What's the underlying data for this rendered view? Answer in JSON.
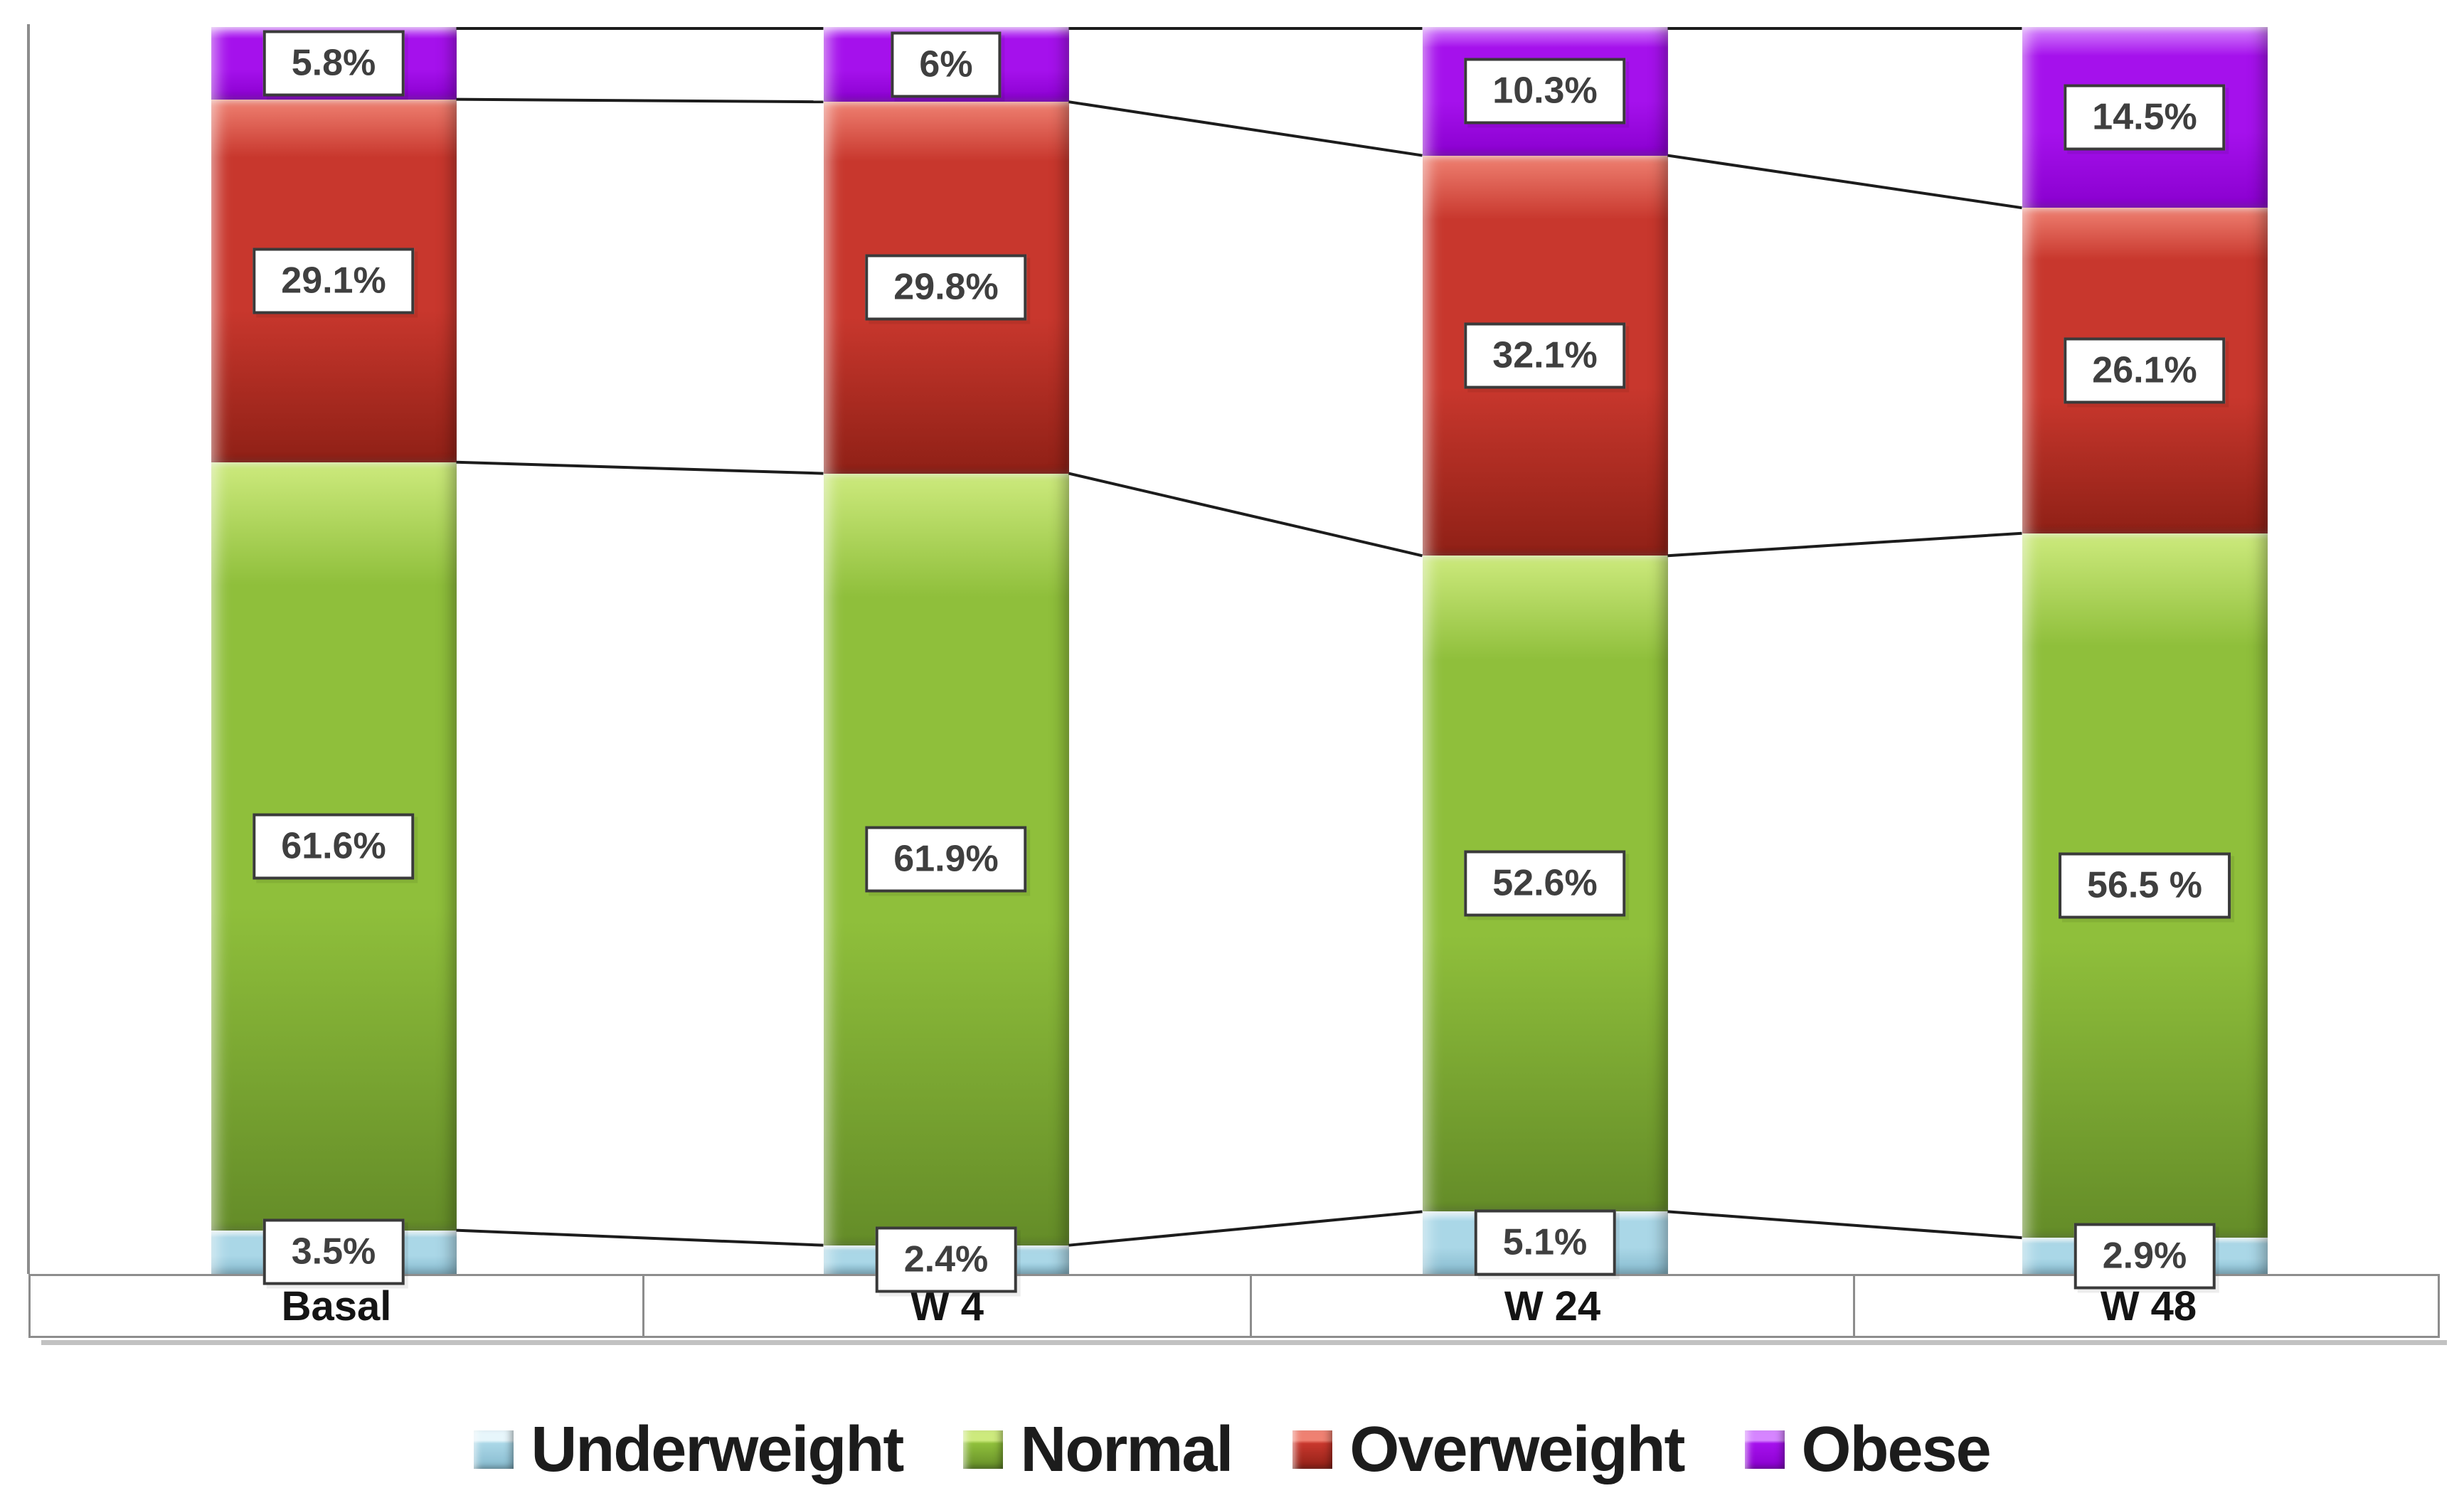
{
  "chart_data": {
    "type": "bar",
    "subtype": "stacked-100-percent-column",
    "title": "",
    "categories": [
      "Basal",
      "W 4",
      "W 24",
      "W 48"
    ],
    "series": [
      {
        "name": "Underweight",
        "color": "#aad7e7",
        "color_light": "#e7f6fb",
        "color_dark": "#86bace",
        "values": [
          3.5,
          2.4,
          5.1,
          2.9
        ],
        "labels": [
          "3.5%",
          "2.4%",
          "5.1%",
          "2.9%"
        ]
      },
      {
        "name": "Normal",
        "color": "#8fbf3b",
        "color_light": "#cdea7d",
        "color_dark": "#648c28",
        "values": [
          61.6,
          61.9,
          52.6,
          56.5
        ],
        "labels": [
          "61.6%",
          "61.9%",
          "52.6%",
          "56.5 %"
        ]
      },
      {
        "name": "Overweight",
        "color": "#c8372d",
        "color_light": "#ef8172",
        "color_dark": "#8f2016",
        "values": [
          29.1,
          29.8,
          32.1,
          26.1
        ],
        "labels": [
          "29.1%",
          "29.8%",
          "32.1%",
          "26.1%"
        ]
      },
      {
        "name": "Obese",
        "color": "#a511ec",
        "color_light": "#d685ff",
        "color_dark": "#8a00cf",
        "values": [
          5.8,
          6,
          10.3,
          14.5
        ],
        "labels": [
          "5.8%",
          "6%",
          "10.3%",
          "14.5%"
        ]
      }
    ],
    "stack_order_top_to_bottom": [
      "Obese",
      "Overweight",
      "Normal",
      "Underweight"
    ],
    "series_lines": true,
    "data_labels": "in white boxes centered on each segment",
    "legend": {
      "position": "bottom",
      "entries": [
        "Underweight",
        "Normal",
        "Overweight",
        "Obese"
      ]
    },
    "axes": {
      "ylim": [
        0,
        100
      ],
      "y_ticks": [],
      "y_axis_line": true,
      "x_labels_in_bordered_strip": true,
      "grid": false
    }
  },
  "colors": {
    "background": "#ffffff",
    "axis_line": "#8d8d8d",
    "connector_line": "#1c1c1c",
    "label_box_border": "#3a3a3a",
    "label_text": "#3f3f3f",
    "category_text": "#141414",
    "legend_text": "#1c1c1c"
  }
}
